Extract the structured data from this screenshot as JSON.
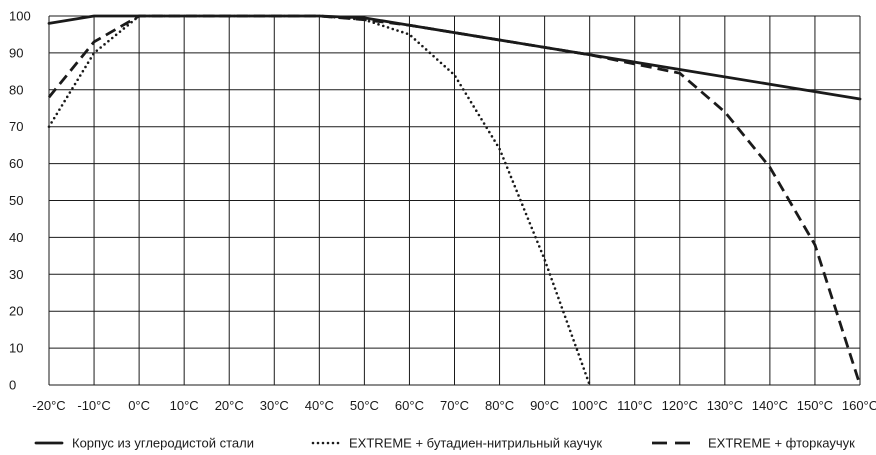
{
  "chart_data": {
    "type": "line",
    "title": "",
    "xlabel": "",
    "ylabel": "",
    "xlim": [
      -20,
      160
    ],
    "ylim": [
      0,
      100
    ],
    "x_ticks": [
      -20,
      -10,
      0,
      10,
      20,
      30,
      40,
      50,
      60,
      70,
      80,
      90,
      100,
      110,
      120,
      130,
      140,
      150,
      160
    ],
    "x_tick_labels": [
      "-20°C",
      "-10°C",
      "0°C",
      "10°C",
      "20°C",
      "30°C",
      "40°C",
      "50°C",
      "60°C",
      "70°C",
      "80°C",
      "90°C",
      "100°C",
      "110°C",
      "120°C",
      "130°C",
      "140°C",
      "150°C",
      "160°C"
    ],
    "y_ticks": [
      0,
      10,
      20,
      30,
      40,
      50,
      60,
      70,
      80,
      90,
      100
    ],
    "y_tick_labels": [
      "0",
      "10",
      "20",
      "30",
      "40",
      "50",
      "60",
      "70",
      "80",
      "90",
      "100"
    ],
    "grid": true,
    "legend_position": "bottom",
    "series": [
      {
        "name": "Корпус из углеродистой стали",
        "style": "solid",
        "color": "#1a1a1a",
        "points": [
          [
            -20,
            98
          ],
          [
            -10,
            100
          ],
          [
            40,
            100
          ],
          [
            50,
            99.5
          ],
          [
            60,
            97.5
          ],
          [
            100,
            89.5
          ],
          [
            120,
            85.5
          ],
          [
            140,
            81.5
          ],
          [
            160,
            77.5
          ]
        ]
      },
      {
        "name": "EXTREME + бутадиен-нитрильный каучук",
        "style": "dotted",
        "color": "#1a1a1a",
        "points": [
          [
            -20,
            70
          ],
          [
            -10,
            90
          ],
          [
            0,
            100
          ],
          [
            40,
            100
          ],
          [
            50,
            99
          ],
          [
            60,
            95
          ],
          [
            70,
            84
          ],
          [
            80,
            64
          ],
          [
            90,
            34
          ],
          [
            100,
            0
          ]
        ]
      },
      {
        "name": "EXTREME + фторкаучук",
        "style": "dashed",
        "color": "#1a1a1a",
        "points": [
          [
            -20,
            78
          ],
          [
            -10,
            93
          ],
          [
            0,
            100
          ],
          [
            40,
            100
          ],
          [
            50,
            99
          ],
          [
            60,
            97.5
          ],
          [
            100,
            89.5
          ],
          [
            120,
            84.5
          ],
          [
            130,
            74
          ],
          [
            140,
            59
          ],
          [
            150,
            38
          ],
          [
            160,
            0
          ]
        ]
      }
    ]
  }
}
